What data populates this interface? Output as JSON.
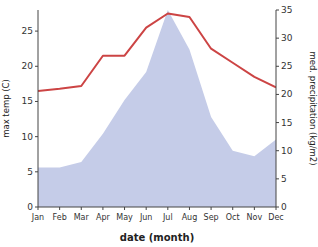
{
  "chart_data": {
    "type": "line",
    "xlabel": "date (month)",
    "ylabel": "max temp (C)",
    "y2label": "med. precipitation (kg/m2)",
    "categories": [
      "Jan",
      "Feb",
      "Mar",
      "Apr",
      "May",
      "Jun",
      "Jul",
      "Aug",
      "Sep",
      "Oct",
      "Nov",
      "Dec"
    ],
    "series": [
      {
        "type": "area",
        "axis": "y2",
        "color": "#c5cce8",
        "values": [
          7.0,
          7.0,
          8.0,
          13.0,
          19.0,
          24.0,
          35.0,
          28.0,
          16.0,
          10.0,
          9.0,
          12.0
        ]
      },
      {
        "type": "line",
        "color": "#cc4444",
        "values": [
          16.5,
          16.8,
          17.2,
          21.5,
          21.5,
          25.5,
          27.5,
          27.0,
          22.5,
          20.5,
          18.5,
          17.0
        ]
      }
    ],
    "ylim": [
      0,
      28
    ],
    "yticks": [
      0,
      5,
      10,
      15,
      20,
      25
    ],
    "y2lim": [
      0,
      35
    ],
    "y2ticks": [
      0,
      5,
      10,
      15,
      20,
      25,
      30,
      35
    ],
    "grid": false
  }
}
